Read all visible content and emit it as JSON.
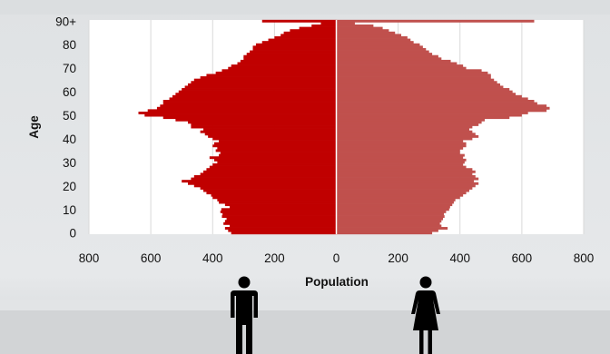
{
  "chart_data": {
    "type": "bar",
    "orientation": "horizontal",
    "layout": "population-pyramid",
    "xlabel": "Population",
    "ylabel": "Age",
    "xlim": [
      -800,
      800
    ],
    "x_ticks": [
      -800,
      -600,
      -400,
      -200,
      0,
      200,
      400,
      600,
      800
    ],
    "x_tick_labels": [
      "800",
      "600",
      "400",
      "200",
      "0",
      "200",
      "400",
      "600",
      "800"
    ],
    "ylim": [
      0,
      90
    ],
    "y_ticks": [
      0,
      10,
      20,
      30,
      40,
      50,
      60,
      70,
      80,
      90
    ],
    "y_tick_labels": [
      "0",
      "10",
      "20",
      "30",
      "40",
      "50",
      "60",
      "70",
      "80",
      "90+"
    ],
    "grid": true,
    "categories": [
      0,
      1,
      2,
      3,
      4,
      5,
      6,
      7,
      8,
      9,
      10,
      11,
      12,
      13,
      14,
      15,
      16,
      17,
      18,
      19,
      20,
      21,
      22,
      23,
      24,
      25,
      26,
      27,
      28,
      29,
      30,
      31,
      32,
      33,
      34,
      35,
      36,
      37,
      38,
      39,
      40,
      41,
      42,
      43,
      44,
      45,
      46,
      47,
      48,
      49,
      50,
      51,
      52,
      53,
      54,
      55,
      56,
      57,
      58,
      59,
      60,
      61,
      62,
      63,
      64,
      65,
      66,
      67,
      68,
      69,
      70,
      71,
      72,
      73,
      74,
      75,
      76,
      77,
      78,
      79,
      80,
      81,
      82,
      83,
      84,
      85,
      86,
      87,
      88,
      89,
      90
    ],
    "series": [
      {
        "side": "left",
        "color": "#c00000",
        "values": [
          340,
          350,
          360,
          345,
          365,
          360,
          355,
          370,
          368,
          375,
          372,
          345,
          360,
          380,
          385,
          400,
          405,
          420,
          430,
          440,
          460,
          480,
          500,
          470,
          460,
          440,
          430,
          420,
          410,
          400,
          385,
          395,
          410,
          380,
          375,
          390,
          385,
          400,
          395,
          380,
          400,
          415,
          425,
          440,
          430,
          470,
          470,
          480,
          520,
          560,
          620,
          640,
          610,
          580,
          570,
          560,
          560,
          540,
          530,
          520,
          510,
          500,
          490,
          480,
          470,
          460,
          440,
          420,
          390,
          370,
          350,
          340,
          320,
          310,
          300,
          300,
          290,
          280,
          270,
          270,
          260,
          240,
          220,
          200,
          180,
          170,
          150,
          120,
          80,
          50,
          240
        ]
      },
      {
        "side": "right",
        "color": "#c0504d",
        "values": [
          310,
          330,
          360,
          340,
          335,
          340,
          345,
          350,
          348,
          355,
          365,
          368,
          375,
          380,
          385,
          400,
          410,
          420,
          430,
          440,
          450,
          460,
          445,
          460,
          450,
          440,
          450,
          440,
          420,
          410,
          415,
          420,
          410,
          415,
          400,
          400,
          410,
          420,
          420,
          410,
          440,
          460,
          450,
          440,
          430,
          440,
          460,
          470,
          480,
          560,
          600,
          620,
          680,
          690,
          680,
          650,
          640,
          620,
          600,
          580,
          570,
          560,
          540,
          530,
          520,
          510,
          500,
          500,
          490,
          470,
          420,
          410,
          390,
          370,
          340,
          330,
          310,
          300,
          290,
          280,
          270,
          250,
          240,
          230,
          210,
          190,
          170,
          150,
          120,
          60,
          640
        ]
      }
    ]
  },
  "icons": {
    "male": "male-figure-icon",
    "female": "female-figure-icon"
  }
}
